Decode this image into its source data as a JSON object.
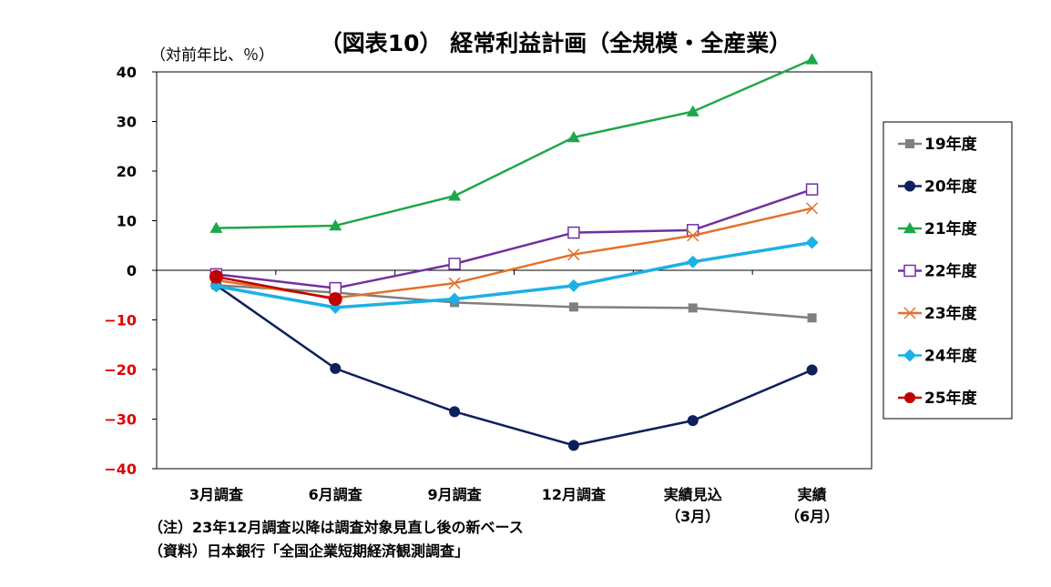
{
  "chart_data": {
    "type": "line",
    "title": "（図表10） 経常利益計画（全規模・全産業）",
    "ylabel": "（対前年比、％）",
    "xlabel": "",
    "ylim": [
      -40,
      40
    ],
    "yticks": [
      40,
      30,
      20,
      10,
      0,
      -10,
      -20,
      -30,
      -40
    ],
    "ytick_labels": [
      "40",
      "30",
      "20",
      "10",
      "0",
      "−10",
      "−20",
      "−30",
      "−40"
    ],
    "negative_tick_color": "#e00000",
    "categories": [
      "3月調査",
      "6月調査",
      "9月調査",
      "12月調査",
      "実績見込",
      "実績"
    ],
    "categories_sub": [
      "",
      "",
      "",
      "",
      "（3月）",
      "（6月）"
    ],
    "grid": false,
    "legend_position": "right",
    "series": [
      {
        "name": "19年度",
        "color": "#808080",
        "marker": "square",
        "values": [
          -3.0,
          -4.5,
          -6.5,
          -7.4,
          -7.6,
          -9.6
        ]
      },
      {
        "name": "20年度",
        "color": "#0d1f5c",
        "marker": "circle",
        "values": [
          -3.0,
          -19.8,
          -28.5,
          -35.3,
          -30.3,
          -20.1
        ]
      },
      {
        "name": "21年度",
        "color": "#1fa64a",
        "marker": "triangle",
        "values": [
          8.5,
          9.0,
          15.0,
          26.8,
          32.0,
          42.5
        ]
      },
      {
        "name": "22年度",
        "color": "#7030a0",
        "marker": "square-open",
        "values": [
          -0.8,
          -3.6,
          1.3,
          7.6,
          8.1,
          16.3
        ]
      },
      {
        "name": "23年度",
        "color": "#e2712a",
        "marker": "x",
        "values": [
          -2.0,
          -5.6,
          -2.6,
          3.2,
          7.0,
          12.5
        ]
      },
      {
        "name": "24年度",
        "color": "#1cb0e6",
        "marker": "diamond",
        "values": [
          -3.2,
          -7.5,
          -5.8,
          -3.1,
          1.7,
          5.6
        ]
      },
      {
        "name": "25年度",
        "color": "#c00000",
        "marker": "circle",
        "values": [
          -1.3,
          -5.8,
          null,
          null,
          null,
          null
        ]
      }
    ]
  },
  "notes": [
    "（注）23年12月調査以降は調査対象見直し後の新ベース",
    "（資料）日本銀行「全国企業短期経済観測調査」"
  ]
}
